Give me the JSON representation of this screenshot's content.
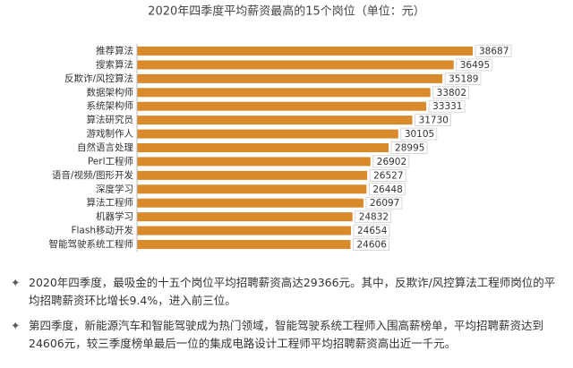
{
  "chart_data": {
    "type": "bar",
    "orientation": "horizontal",
    "title": "2020年四季度平均薪资最高的15个岗位（单位：元）",
    "categories": [
      "推荐算法",
      "搜索算法",
      "反欺诈/风控算法",
      "数据架构师",
      "系统架构师",
      "算法研究员",
      "游戏制作人",
      "自然语言处理",
      "Perl工程师",
      "语音/视频/图形开发",
      "深度学习",
      "算法工程师",
      "机器学习",
      "Flash移动开发",
      "智能驾驶系统工程师"
    ],
    "values": [
      38687,
      36495,
      35189,
      33802,
      33331,
      31730,
      30105,
      28995,
      26902,
      26527,
      26448,
      26097,
      24832,
      24654,
      24606
    ],
    "color": "#d98a2b"
  },
  "notes": [
    "2020年四季度，最吸金的十五个岗位平均招聘薪资高达29366元。其中，反欺诈/风控算法工程师岗位的平均招聘薪资环比增长9.4%，进入前三位。",
    "第四季度，新能源汽车和智能驾驶成为热门领域，智能驾驶系统工程师入围高薪榜单，平均招聘薪资达到24606元，较三季度榜单最后一位的集成电路设计工程师平均招聘薪资高出近一千元。"
  ]
}
